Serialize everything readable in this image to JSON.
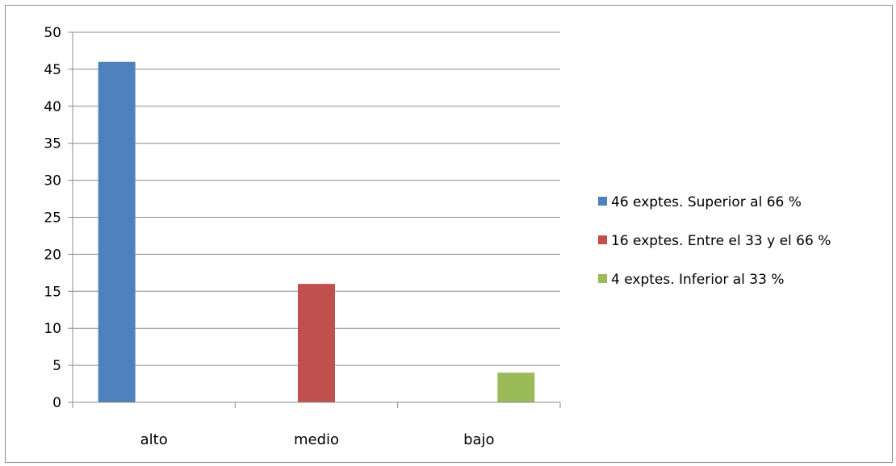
{
  "chart_data": {
    "type": "bar",
    "categories": [
      "alto",
      "medio",
      "bajo"
    ],
    "series": [
      {
        "name": "46 exptes. Superior al 66 %",
        "values": [
          46,
          0,
          0
        ],
        "color": "#4f81bd"
      },
      {
        "name": "16 exptes. Entre el 33 y el 66 %",
        "values": [
          0,
          16,
          0
        ],
        "color": "#c0504d"
      },
      {
        "name": "4 exptes. Inferior al 33 %",
        "values": [
          0,
          0,
          4
        ],
        "color": "#9bbb59"
      }
    ],
    "title": "",
    "xlabel": "",
    "ylabel": "",
    "ylim": [
      0,
      50
    ],
    "yticks": [
      0,
      5,
      10,
      15,
      20,
      25,
      30,
      35,
      40,
      45,
      50
    ],
    "grid": true,
    "legend_position": "right"
  }
}
